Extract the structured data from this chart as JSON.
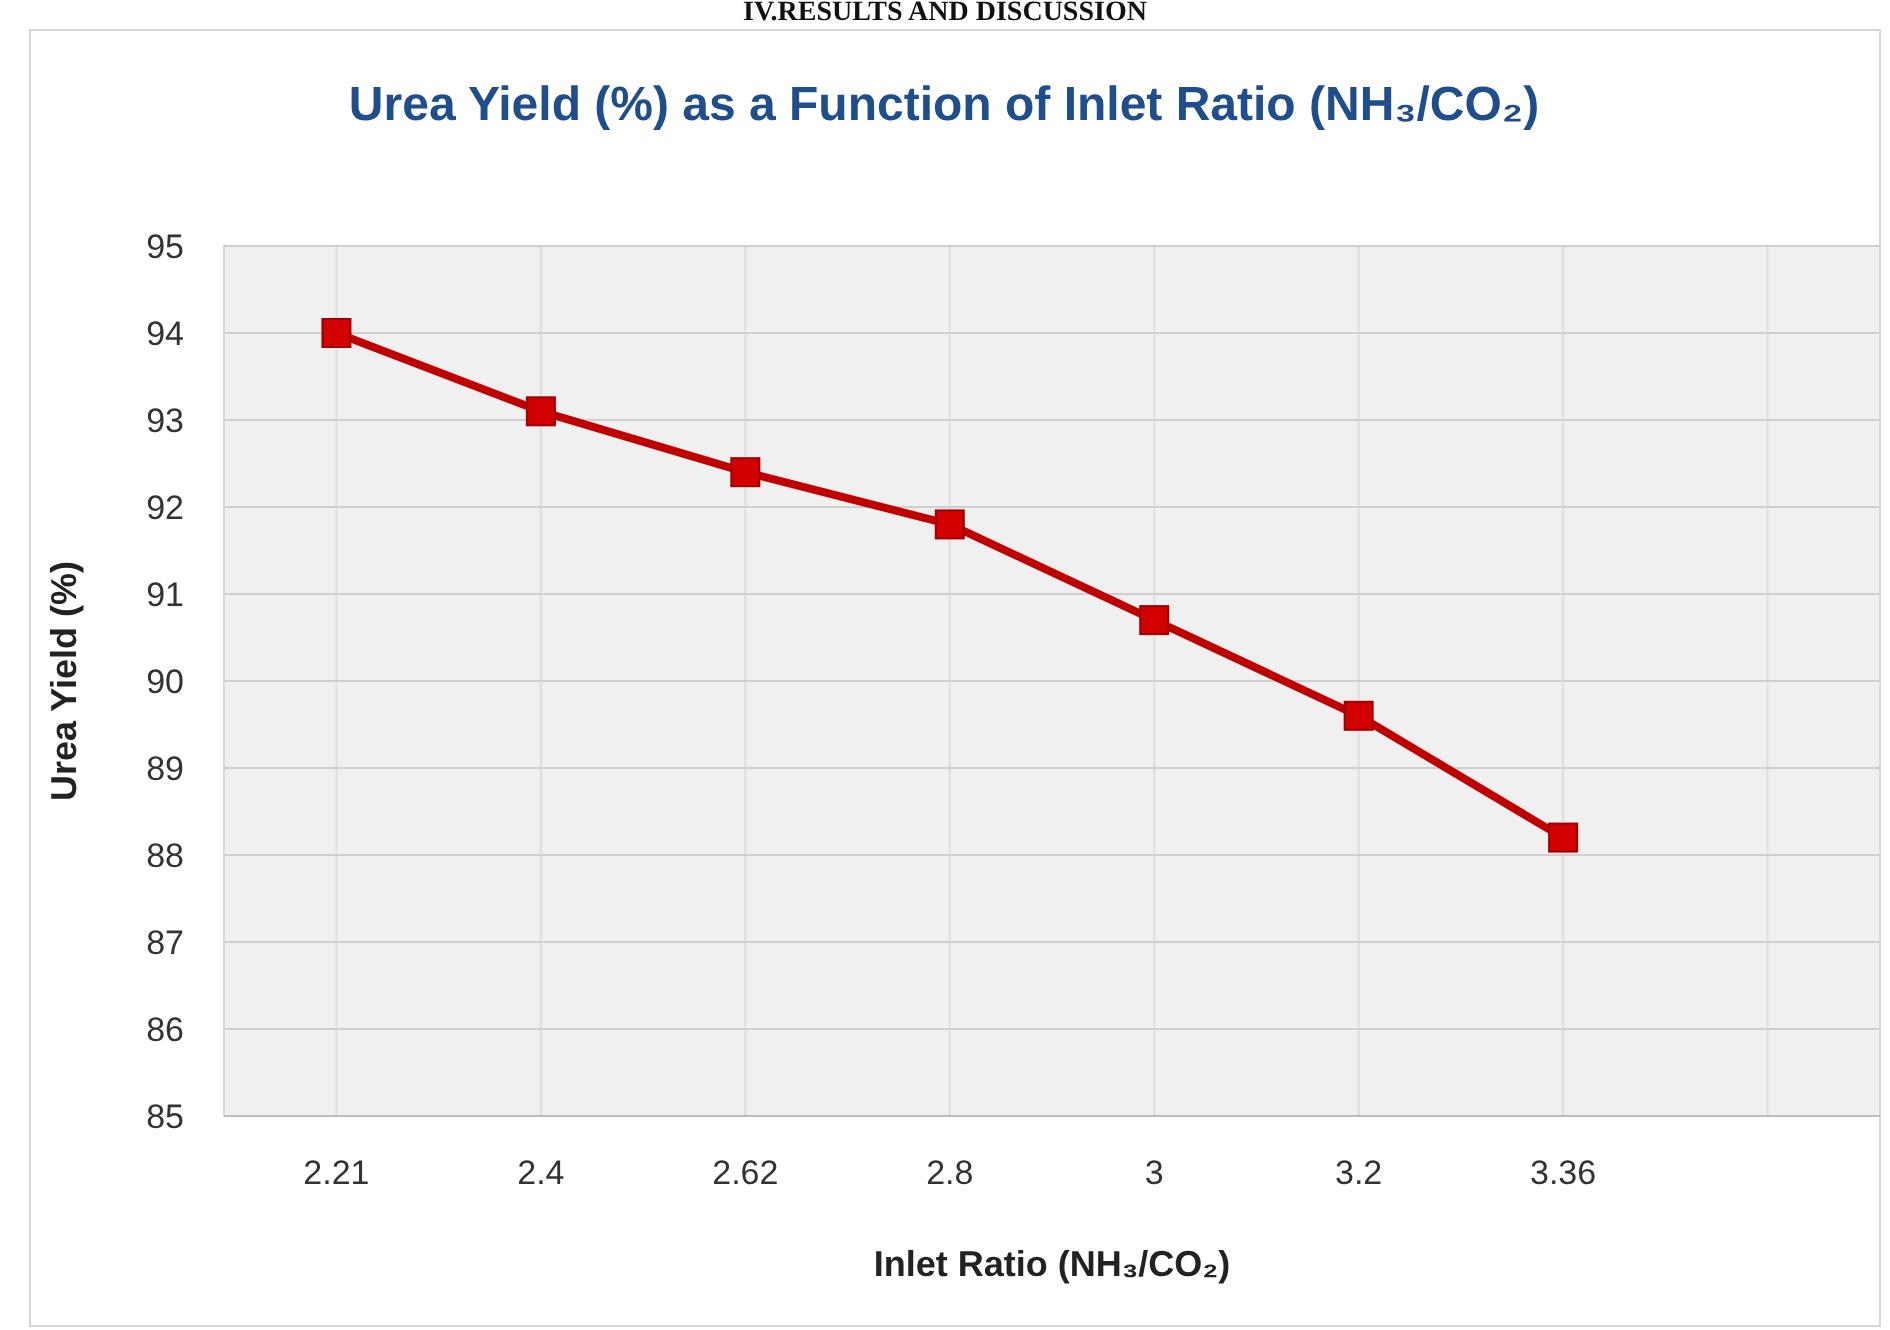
{
  "chart_data": {
    "type": "line",
    "title": "Urea Yield (%) as a Function of Inlet Ratio (NH₃/CO₂)",
    "xlabel": "Inlet Ratio (NH₃/CO₂)",
    "ylabel": "Urea Yield (%)",
    "annotations": [
      "IV.RESULTS AND DISCUSSION"
    ],
    "categories": [
      "2.21",
      "2.4",
      "2.62",
      "2.8",
      "3",
      "3.2",
      "3.36",
      null
    ],
    "series": [
      {
        "color": "#c00000",
        "values": [
          94,
          93.1,
          92.4,
          91.8,
          90.7,
          89.6,
          88.2,
          null
        ]
      }
    ],
    "ylim": [
      85,
      95
    ],
    "yticks": [
      95,
      94,
      93,
      92,
      91,
      90,
      89,
      88,
      87,
      86,
      85
    ],
    "grid": true,
    "marker": "square",
    "line_style": "solid"
  }
}
